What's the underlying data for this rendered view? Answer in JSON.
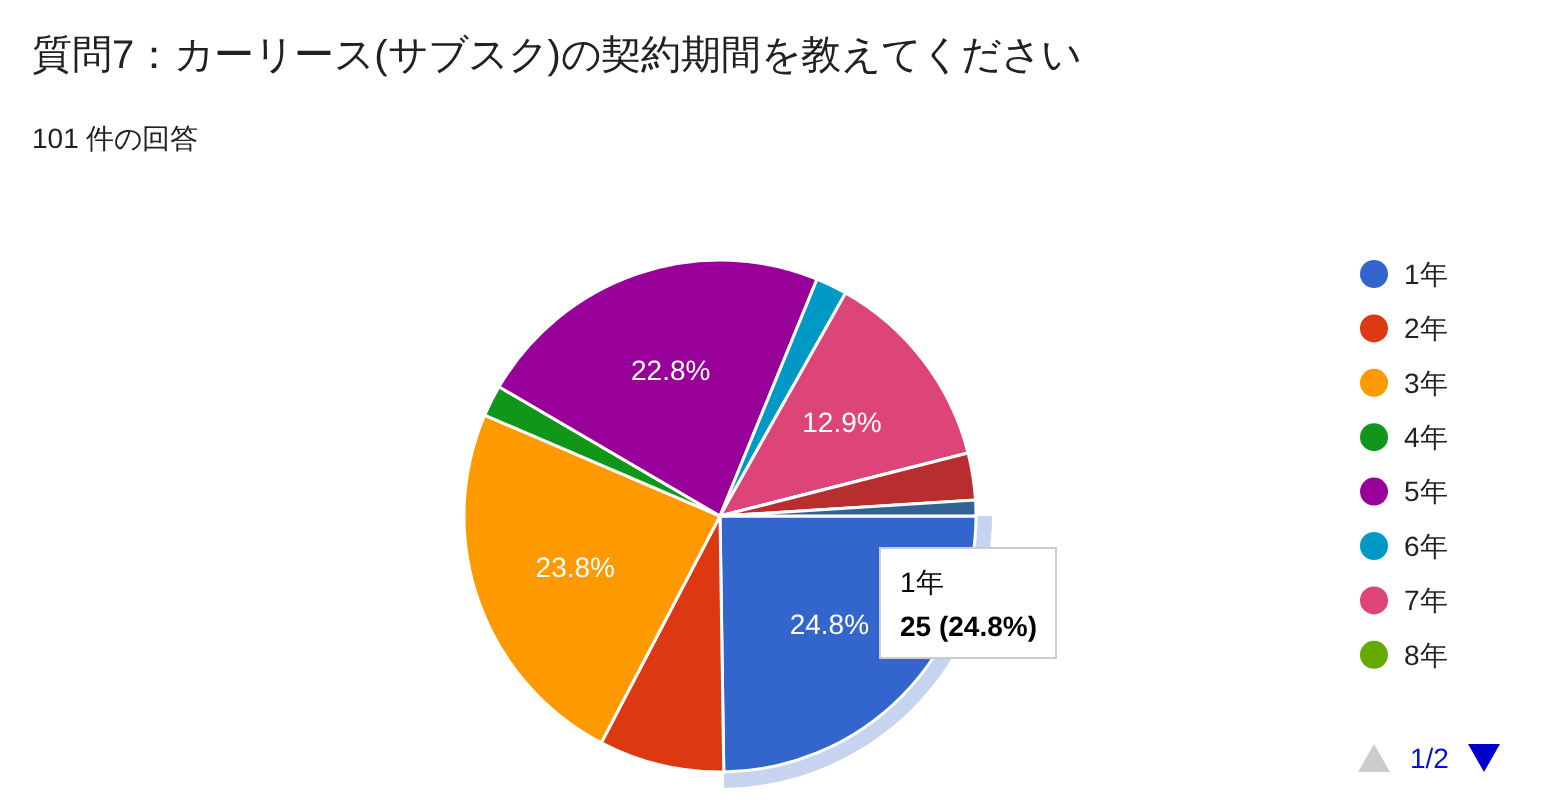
{
  "chart_data": {
    "type": "pie",
    "title": "質問7：カーリース(サブスク)の契約期間を教えてください",
    "subtitle": "101 件の回答",
    "categories": [
      "1年",
      "2年",
      "3年",
      "4年",
      "5年",
      "6年",
      "7年",
      "8年",
      null,
      null
    ],
    "values": [
      24.8,
      7.92,
      23.8,
      1.98,
      22.8,
      1.98,
      12.9,
      0,
      2.97,
      0.99
    ],
    "colors": [
      "#3366cc",
      "#dc3912",
      "#ff9900",
      "#109618",
      "#990099",
      "#0099c6",
      "#dd4477",
      "#66aa00",
      "#b82e2e",
      "#316395"
    ],
    "value_labels": [
      "24.8%",
      null,
      "23.8%",
      null,
      "22.8%",
      null,
      "12.9%",
      null,
      null,
      null
    ],
    "annotations": [
      "1年",
      "25 (24.8%)",
      "1/2"
    ],
    "legend": "right"
  }
}
